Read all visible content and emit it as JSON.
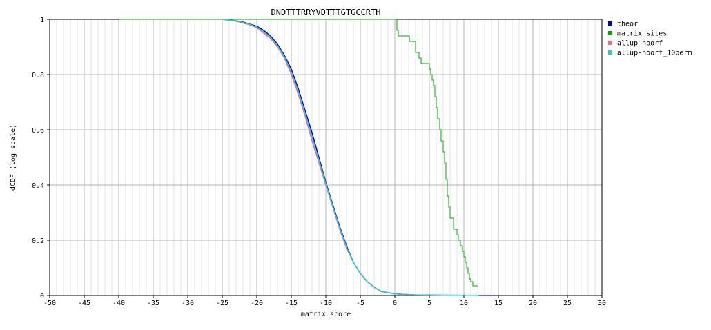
{
  "chart_data": {
    "type": "line",
    "title": "DNDTTTRRYVDTTTGTGCCRTH",
    "xlabel": "matrix score",
    "ylabel": "dCDF (log scale)",
    "xlim": [
      -50,
      30
    ],
    "ylim": [
      0,
      1
    ],
    "x_ticks": [
      "-50",
      "-45",
      "-40",
      "-35",
      "-30",
      "-25",
      "-20",
      "-15",
      "-10",
      "-5",
      "0",
      "5",
      "10",
      "15",
      "20",
      "25",
      "30"
    ],
    "y_ticks": [
      "0",
      "0.2",
      "0.4",
      "0.6",
      "0.8",
      "1"
    ],
    "grid": true,
    "legend_position": "right",
    "series": [
      {
        "name": "theor",
        "color": "#0000cc",
        "step": false,
        "points": [
          [
            -25,
            1.0
          ],
          [
            -23,
            0.995
          ],
          [
            -22,
            0.99
          ],
          [
            -20,
            0.975
          ],
          [
            -19,
            0.96
          ],
          [
            -18,
            0.94
          ],
          [
            -17,
            0.91
          ],
          [
            -16,
            0.87
          ],
          [
            -15,
            0.82
          ],
          [
            -14,
            0.75
          ],
          [
            -13,
            0.67
          ],
          [
            -12,
            0.59
          ],
          [
            -11,
            0.5
          ],
          [
            -10,
            0.41
          ],
          [
            -9,
            0.33
          ],
          [
            -8,
            0.25
          ],
          [
            -7,
            0.18
          ],
          [
            -6,
            0.12
          ],
          [
            -5,
            0.08
          ],
          [
            -4,
            0.05
          ],
          [
            -3,
            0.03
          ],
          [
            -2,
            0.015
          ],
          [
            0,
            0.006
          ],
          [
            3,
            0.002
          ],
          [
            7,
            0.001
          ],
          [
            10,
            0.0006
          ],
          [
            14.5,
            0.0003
          ]
        ]
      },
      {
        "name": "matrix_sites",
        "color": "#00aa00",
        "step": true,
        "points": [
          [
            -40,
            1.0
          ],
          [
            -0.5,
            1.0
          ],
          [
            0.3,
            0.96
          ],
          [
            0.5,
            0.94
          ],
          [
            1,
            0.94
          ],
          [
            1.5,
            0.94
          ],
          [
            2,
            0.94
          ],
          [
            2.1,
            0.92
          ],
          [
            2.8,
            0.92
          ],
          [
            3,
            0.88
          ],
          [
            3.5,
            0.86
          ],
          [
            3.8,
            0.84
          ],
          [
            4.8,
            0.84
          ],
          [
            5,
            0.82
          ],
          [
            5.2,
            0.8
          ],
          [
            5.4,
            0.78
          ],
          [
            5.6,
            0.76
          ],
          [
            5.8,
            0.72
          ],
          [
            6,
            0.68
          ],
          [
            6.2,
            0.64
          ],
          [
            6.5,
            0.6
          ],
          [
            6.7,
            0.56
          ],
          [
            7,
            0.52
          ],
          [
            7.2,
            0.48
          ],
          [
            7.4,
            0.42
          ],
          [
            7.6,
            0.36
          ],
          [
            7.8,
            0.32
          ],
          [
            8,
            0.28
          ],
          [
            8.5,
            0.24
          ],
          [
            9,
            0.22
          ],
          [
            9.2,
            0.2
          ],
          [
            9.5,
            0.18
          ],
          [
            9.8,
            0.16
          ],
          [
            10,
            0.14
          ],
          [
            10.2,
            0.12
          ],
          [
            10.4,
            0.1
          ],
          [
            10.6,
            0.08
          ],
          [
            10.8,
            0.06
          ],
          [
            11,
            0.05
          ],
          [
            11.3,
            0.035
          ],
          [
            12,
            0.035
          ]
        ]
      },
      {
        "name": "allup-noorf",
        "color": "#ff6688",
        "step": false,
        "points": [
          [
            -25,
            1.0
          ],
          [
            -23,
            0.993
          ],
          [
            -21,
            0.98
          ],
          [
            -20,
            0.97
          ],
          [
            -19,
            0.95
          ],
          [
            -18,
            0.93
          ],
          [
            -17,
            0.9
          ],
          [
            -16,
            0.86
          ],
          [
            -15,
            0.8
          ],
          [
            -14,
            0.73
          ],
          [
            -13,
            0.65
          ],
          [
            -12,
            0.56
          ],
          [
            -11,
            0.48
          ],
          [
            -10,
            0.4
          ],
          [
            -9,
            0.32
          ],
          [
            -8,
            0.24
          ],
          [
            -7,
            0.17
          ],
          [
            -6,
            0.12
          ],
          [
            -5,
            0.08
          ],
          [
            -4,
            0.05
          ],
          [
            -3,
            0.03
          ],
          [
            -2,
            0.015
          ],
          [
            0,
            0.006
          ],
          [
            3,
            0.002
          ],
          [
            7,
            0.001
          ],
          [
            12,
            0.0005
          ]
        ]
      },
      {
        "name": "allup-noorf_10perm",
        "color": "#22cccc",
        "step": false,
        "points": [
          [
            -25,
            1.0
          ],
          [
            -23,
            0.995
          ],
          [
            -21,
            0.982
          ],
          [
            -20,
            0.972
          ],
          [
            -19,
            0.955
          ],
          [
            -18,
            0.935
          ],
          [
            -17,
            0.905
          ],
          [
            -16,
            0.865
          ],
          [
            -15,
            0.81
          ],
          [
            -14,
            0.74
          ],
          [
            -13,
            0.66
          ],
          [
            -12,
            0.575
          ],
          [
            -11,
            0.49
          ],
          [
            -10,
            0.405
          ],
          [
            -9,
            0.325
          ],
          [
            -8,
            0.245
          ],
          [
            -7,
            0.175
          ],
          [
            -6,
            0.12
          ],
          [
            -5,
            0.08
          ],
          [
            -4,
            0.05
          ],
          [
            -3,
            0.03
          ],
          [
            -2,
            0.015
          ],
          [
            0,
            0.006
          ],
          [
            3,
            0.002
          ],
          [
            7,
            0.001
          ],
          [
            12,
            0.0005
          ]
        ]
      }
    ]
  }
}
